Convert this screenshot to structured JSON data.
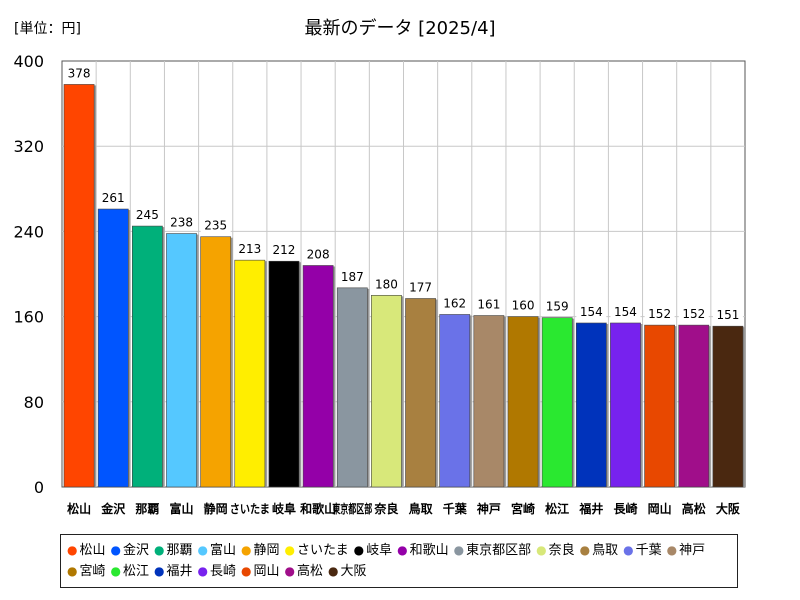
{
  "chart_data": {
    "type": "bar",
    "title": "最新のデータ [2025/4]",
    "unit_label": "[単位：円]",
    "ylim": [
      0,
      400
    ],
    "yticks": [
      0,
      80,
      160,
      240,
      320,
      400
    ],
    "grid": true,
    "legend_position": "bottom",
    "categories": [
      "松山",
      "金沢",
      "那覇",
      "富山",
      "静岡",
      "さいたま",
      "岐阜",
      "和歌山",
      "東京都区部",
      "奈良",
      "鳥取",
      "千葉",
      "神戸",
      "宮崎",
      "松江",
      "福井",
      "長崎",
      "岡山",
      "高松",
      "大阪"
    ],
    "values": [
      378,
      261,
      245,
      238,
      235,
      213,
      212,
      208,
      187,
      180,
      177,
      162,
      161,
      160,
      159,
      154,
      154,
      152,
      152,
      151
    ],
    "colors": [
      "#ff4500",
      "#0055ff",
      "#00b07a",
      "#55c8ff",
      "#f5a300",
      "#ffee00",
      "#000000",
      "#9400a8",
      "#8a96a0",
      "#d8e87a",
      "#a88040",
      "#6a72e8",
      "#a88868",
      "#b07800",
      "#2ae830",
      "#0033bb",
      "#7722ee",
      "#e84800",
      "#a00e8a",
      "#4a2810"
    ]
  }
}
